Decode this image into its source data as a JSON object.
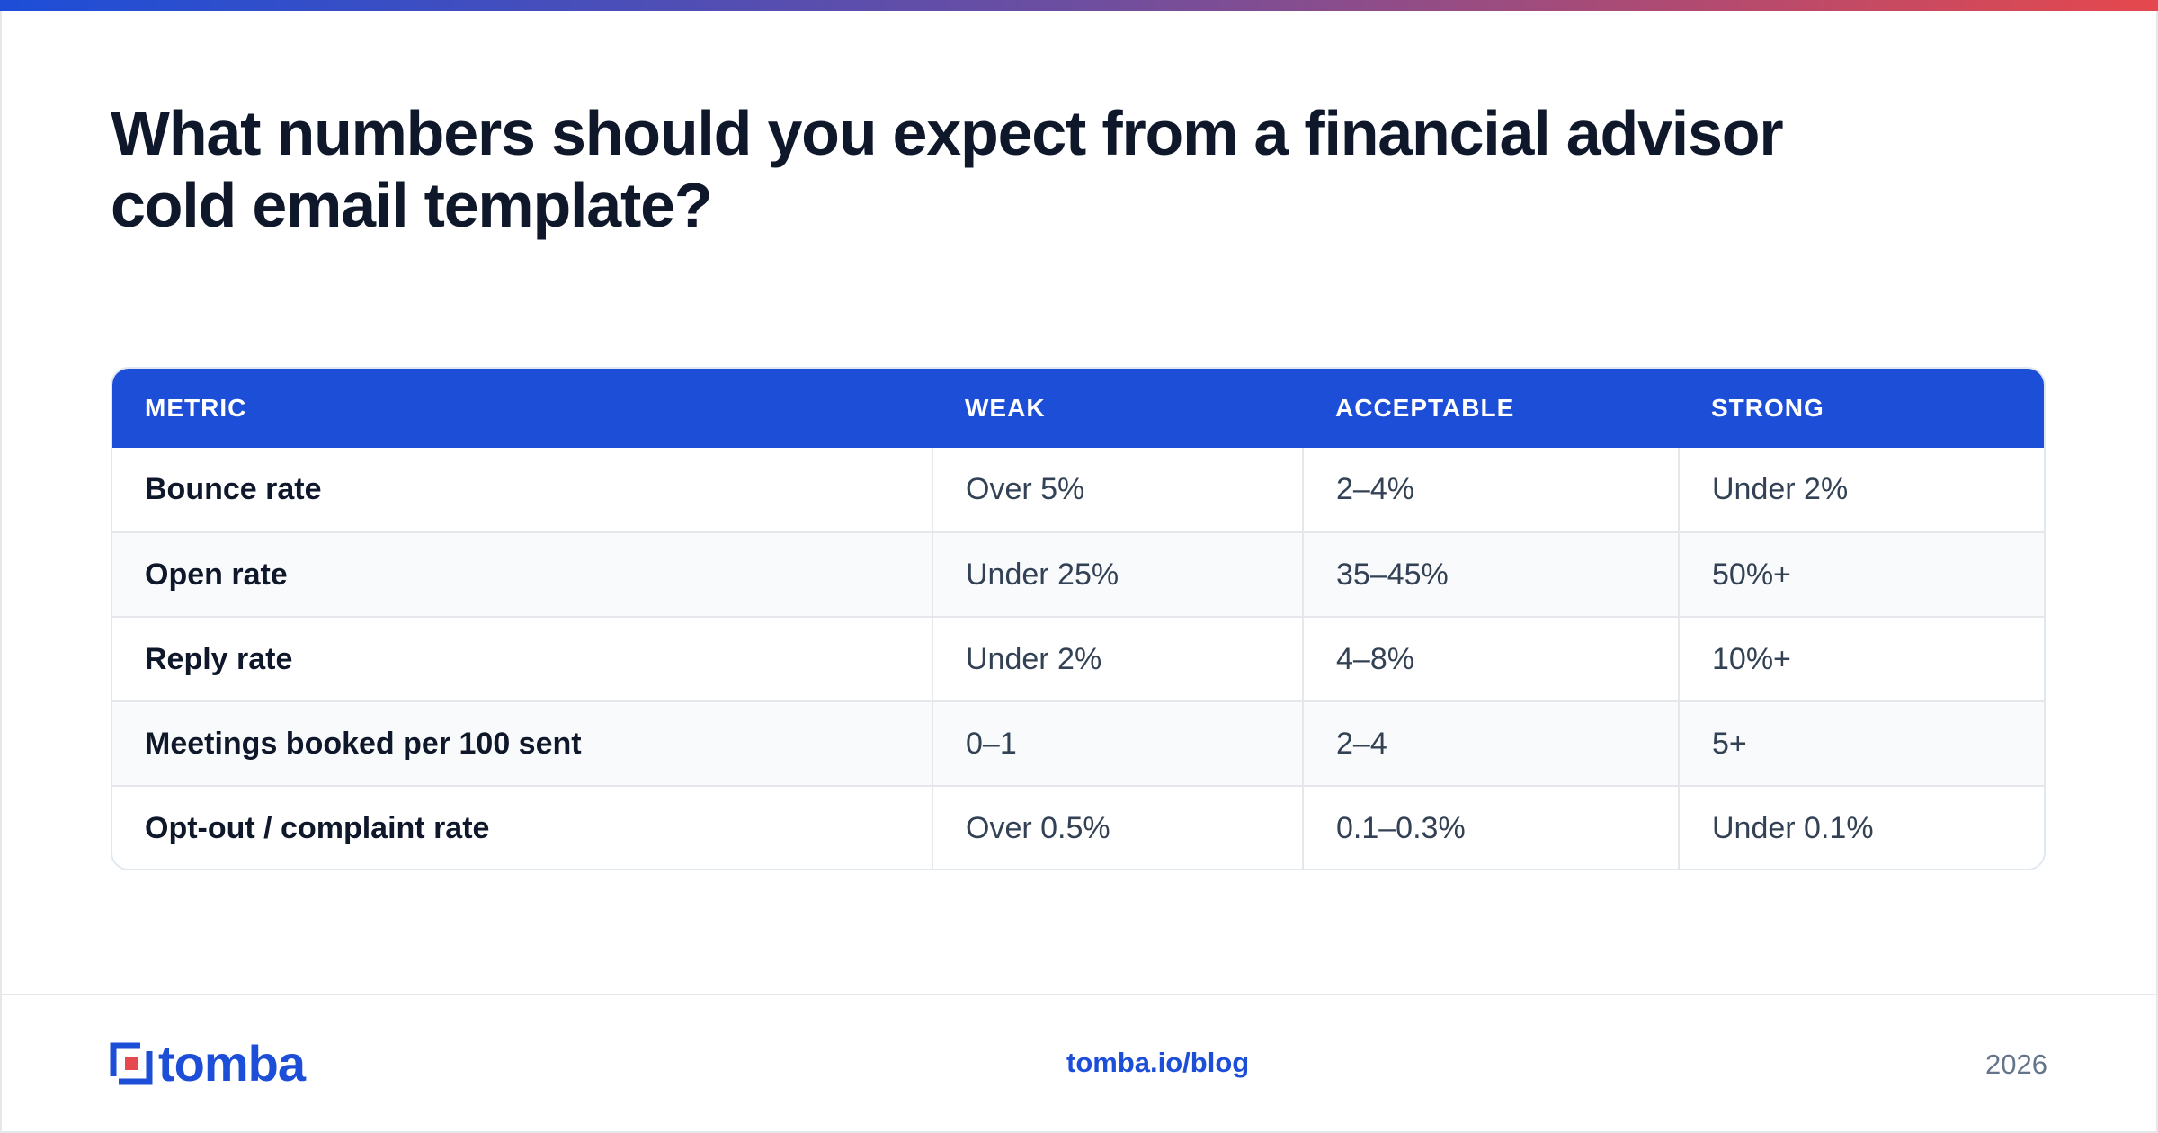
{
  "page": {
    "title": "What numbers should you expect from a financial advisor cold email template?"
  },
  "table": {
    "headers": [
      "METRIC",
      "WEAK",
      "ACCEPTABLE",
      "STRONG"
    ],
    "rows": [
      [
        "Bounce rate",
        "Over 5%",
        "2–4%",
        "Under 2%"
      ],
      [
        "Open rate",
        "Under 25%",
        "35–45%",
        "50%+"
      ],
      [
        "Reply rate",
        "Under 2%",
        "4–8%",
        "10%+"
      ],
      [
        "Meetings booked per 100 sent",
        "0–1",
        "2–4",
        "5+"
      ],
      [
        "Opt-out / complaint rate",
        "Over 0.5%",
        "0.1–0.3%",
        "Under 0.1%"
      ]
    ]
  },
  "footer": {
    "logo_text": "tomba",
    "link": "tomba.io/blog",
    "year": "2026"
  },
  "colors": {
    "accent": "#1d4ed8",
    "logo_red": "#e5484d",
    "text_dark": "#0f172a",
    "text_muted": "#64748b"
  }
}
